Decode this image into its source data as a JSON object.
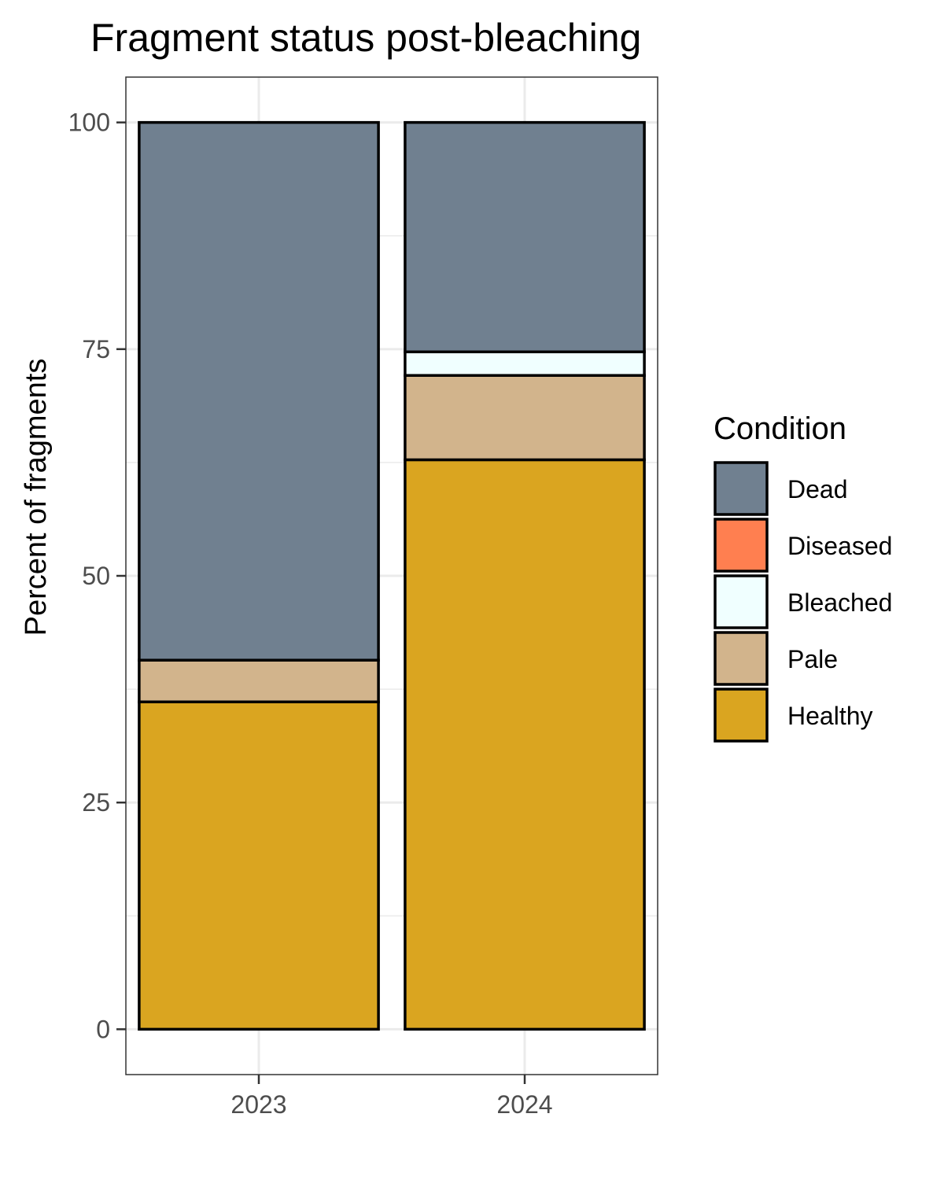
{
  "chart_data": {
    "type": "bar",
    "stacked": true,
    "title": "Fragment status post-bleaching",
    "xlabel": "",
    "ylabel": "Percent of fragments",
    "categories": [
      "2023",
      "2024"
    ],
    "ylim": [
      -5,
      105
    ],
    "yticks": [
      0,
      25,
      50,
      75,
      100
    ],
    "grid": true,
    "legend": {
      "title": "Condition",
      "position": "right",
      "order": [
        "Dead",
        "Diseased",
        "Bleached",
        "Pale",
        "Healthy"
      ]
    },
    "series": [
      {
        "name": "Healthy",
        "color": "#DAA520",
        "values": [
          36.1,
          62.8
        ]
      },
      {
        "name": "Pale",
        "color": "#D2B48C",
        "values": [
          4.6,
          9.3
        ]
      },
      {
        "name": "Bleached",
        "color": "#F0FFFF",
        "values": [
          0,
          2.6
        ]
      },
      {
        "name": "Diseased",
        "color": "#FF7F50",
        "values": [
          0,
          0
        ]
      },
      {
        "name": "Dead",
        "color": "#708090",
        "values": [
          59.3,
          25.3
        ]
      }
    ]
  }
}
